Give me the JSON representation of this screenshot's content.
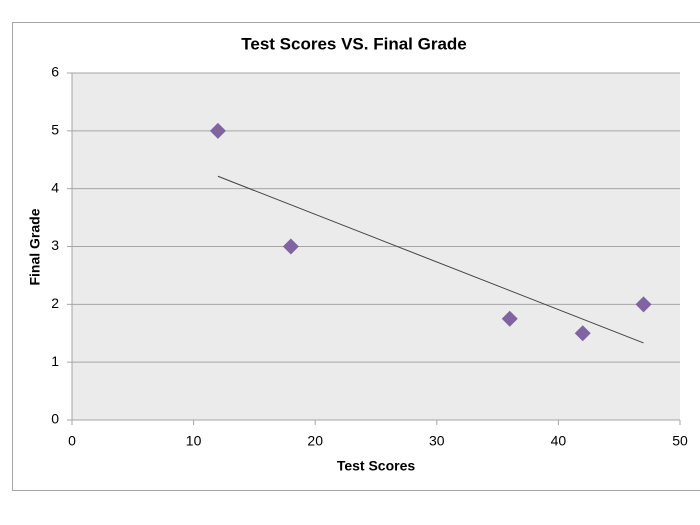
{
  "chart_data": {
    "type": "scatter",
    "title": "Test Scores VS. Final Grade",
    "x_label": "Test Scores",
    "y_label": "Final Grade",
    "series": [
      {
        "color": "#8064a2",
        "x": [
          12,
          18,
          36,
          42,
          47
        ],
        "values": [
          5,
          3,
          1.75,
          1.5,
          2
        ]
      }
    ],
    "trendline": "linear",
    "trendline_color": "#404040",
    "xlim": [
      0,
      50
    ],
    "xticks": [
      0,
      10,
      20,
      30,
      40,
      50
    ],
    "ylim": [
      0,
      6
    ],
    "yticks": [
      0,
      1,
      2,
      3,
      4,
      5,
      6
    ],
    "grid": true
  }
}
